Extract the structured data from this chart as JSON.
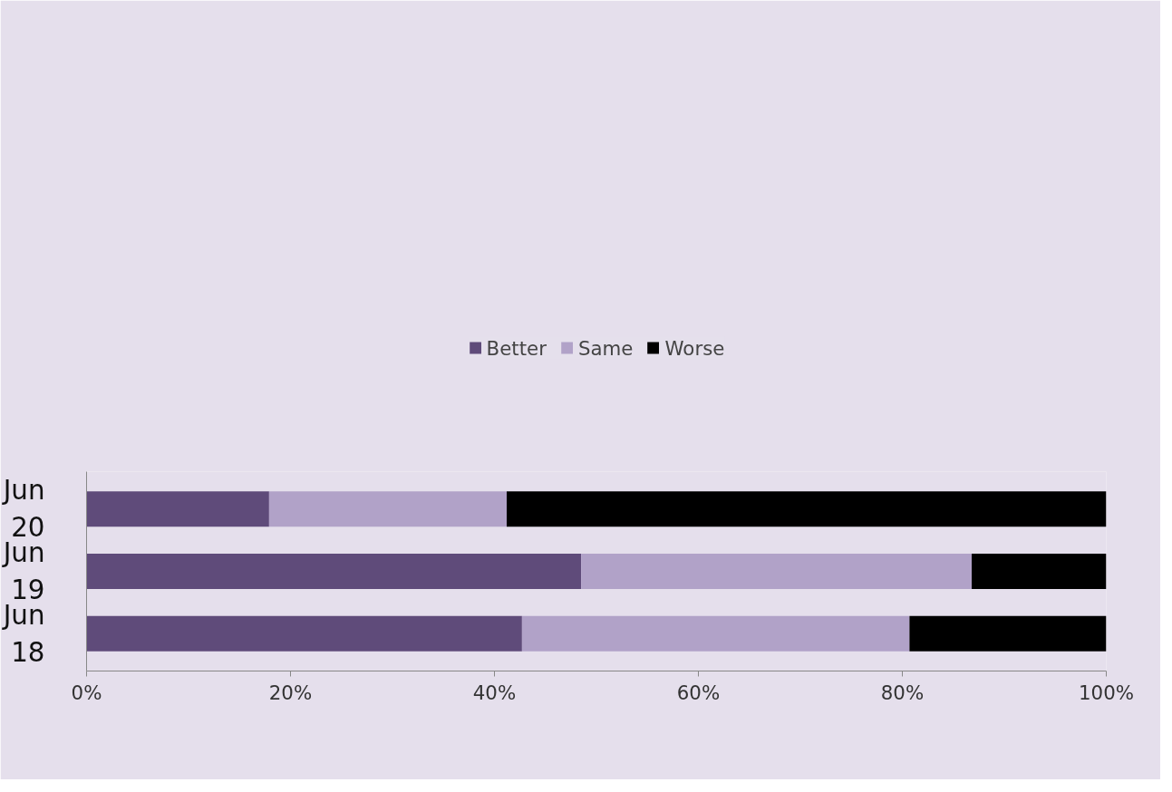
{
  "chart_data": {
    "type": "bar",
    "orientation": "horizontal",
    "stacked": true,
    "categories": [
      "Jun 20",
      "Jun 19",
      "Jun 18"
    ],
    "series": [
      {
        "name": "Better",
        "color": "#5f4b7a",
        "values": [
          17.9,
          48.5,
          42.7
        ]
      },
      {
        "name": "Same",
        "color": "#b1a2c8",
        "values": [
          23.3,
          38.3,
          38.0
        ]
      },
      {
        "name": "Worse",
        "color": "#000000",
        "values": [
          58.8,
          13.2,
          19.3
        ]
      }
    ],
    "xlim": [
      0,
      100
    ],
    "xticks": [
      {
        "value": 0,
        "label": "0%"
      },
      {
        "value": 20,
        "label": "20%"
      },
      {
        "value": 40,
        "label": "40%"
      },
      {
        "value": 60,
        "label": "60%"
      },
      {
        "value": 80,
        "label": "80%"
      },
      {
        "value": 100,
        "label": "100%"
      }
    ],
    "grid": false,
    "legend": "top"
  }
}
